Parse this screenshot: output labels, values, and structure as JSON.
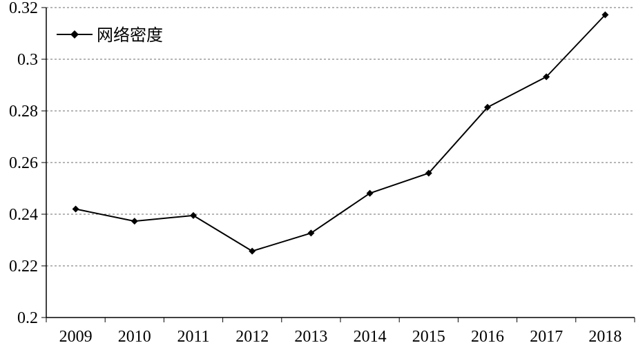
{
  "chart_data": {
    "type": "line",
    "title": "",
    "xlabel": "",
    "ylabel": "",
    "categories": [
      "2009",
      "2010",
      "2011",
      "2012",
      "2013",
      "2014",
      "2015",
      "2016",
      "2017",
      "2018"
    ],
    "series": [
      {
        "name": "网络密度",
        "values": [
          0.242,
          0.2373,
          0.2395,
          0.2257,
          0.2327,
          0.2481,
          0.2559,
          0.2814,
          0.2932,
          0.3172
        ]
      }
    ],
    "ylim": [
      0.2,
      0.32
    ],
    "y_ticks": [
      "0.2",
      "0.22",
      "0.24",
      "0.26",
      "0.28",
      "0.3",
      "0.32"
    ],
    "grid": "horizontal dashed",
    "legend_position": "top-left",
    "colors": {
      "line": "#000000",
      "grid": "#6b6b6b",
      "axis": "#000000",
      "background": "#ffffff"
    },
    "marker": "diamond"
  }
}
